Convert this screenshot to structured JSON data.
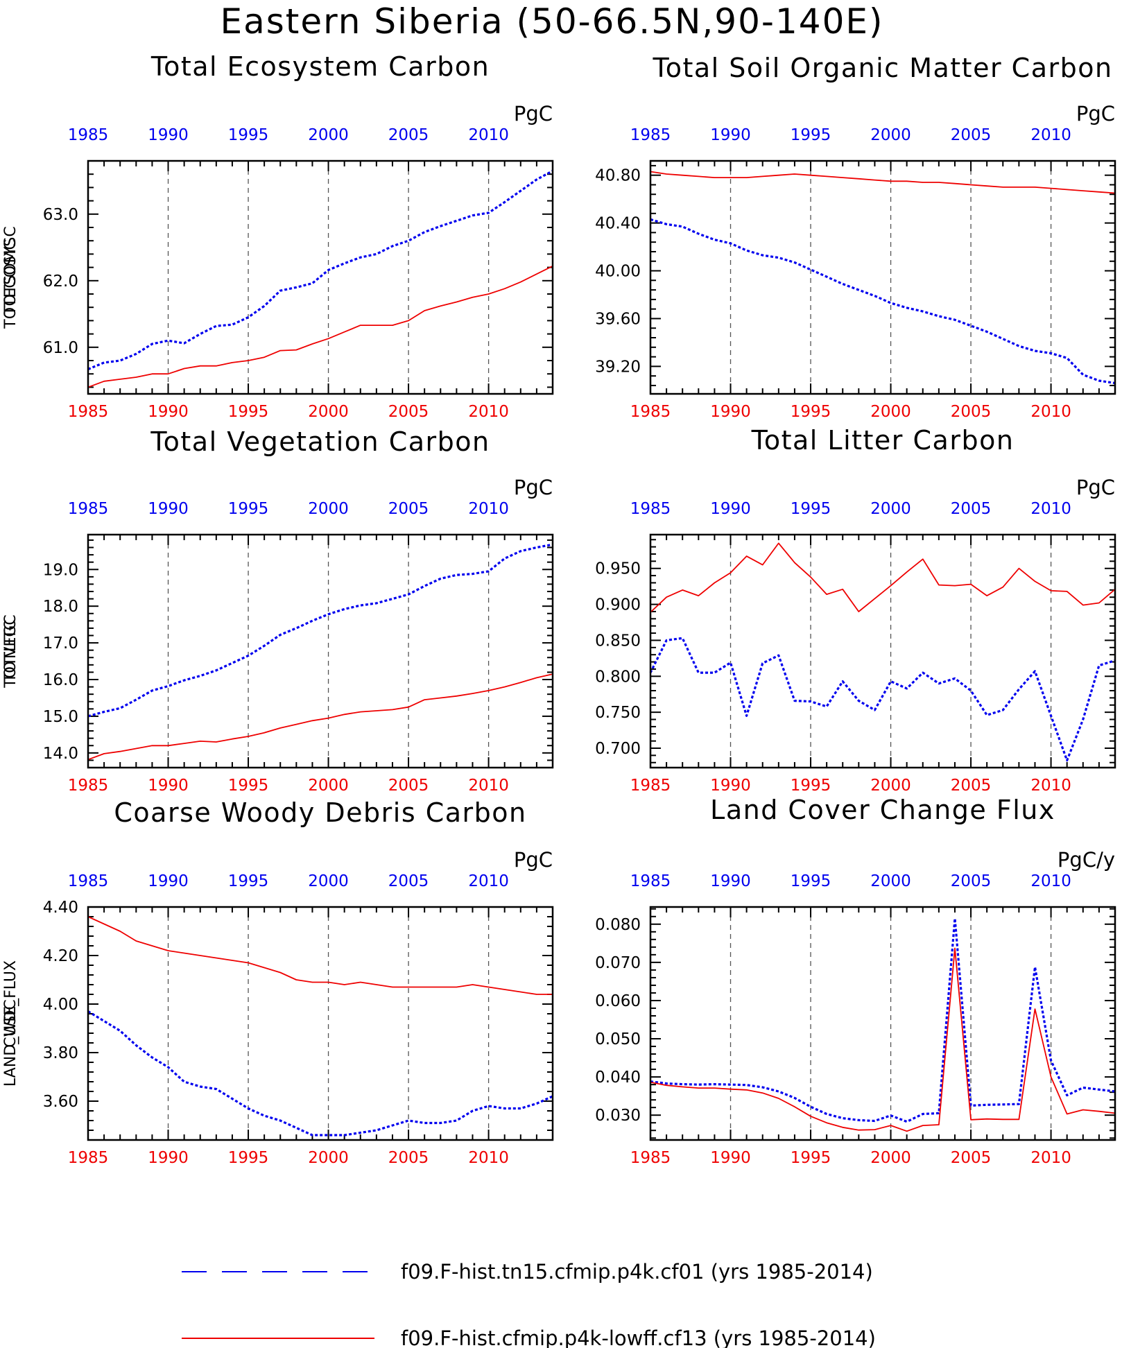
{
  "title": "Eastern Siberia (50-66.5N,90-140E)",
  "colors": {
    "run1": "#0000ee",
    "run2": "#ee0000",
    "frame": "#000000",
    "grid": "#555555"
  },
  "legend": [
    {
      "label": "f09.F-hist.tn15.cfmip.p4k.cf01 (yrs 1985-2014)",
      "color": "#0000ee",
      "style": "dotted"
    },
    {
      "label": "f09.F-hist.cfmip.p4k-lowff.cf13 (yrs 1985-2014)",
      "color": "#ee0000",
      "style": "solid"
    }
  ],
  "chart_data": [
    {
      "type": "line",
      "title": "Total Ecosystem Carbon",
      "ylabel": "TOTECOSYSC",
      "units": "PgC",
      "xlim": [
        1985,
        2014
      ],
      "xticks": [
        "1985",
        "1990",
        "1995",
        "2000",
        "2005",
        "2010"
      ],
      "ylim": [
        60.3,
        63.8
      ],
      "yticks": [
        "61.0",
        "62.0",
        "63.0"
      ],
      "ytick_values": [
        61.0,
        62.0,
        63.0
      ],
      "grid_x": true,
      "x": [
        1985,
        1986,
        1987,
        1988,
        1989,
        1990,
        1991,
        1992,
        1993,
        1994,
        1995,
        1996,
        1997,
        1998,
        1999,
        2000,
        2001,
        2002,
        2003,
        2004,
        2005,
        2006,
        2007,
        2008,
        2009,
        2010,
        2011,
        2012,
        2013,
        2014
      ],
      "series": [
        {
          "name": "f09.F-hist.tn15.cfmip.p4k.cf01",
          "values": [
            60.67,
            60.77,
            60.8,
            60.9,
            61.05,
            61.1,
            61.06,
            61.2,
            61.32,
            61.34,
            61.45,
            61.62,
            61.85,
            61.9,
            61.96,
            62.16,
            62.26,
            62.35,
            62.4,
            62.52,
            62.6,
            62.73,
            62.82,
            62.9,
            62.98,
            63.02,
            63.18,
            63.35,
            63.52,
            63.65
          ]
        },
        {
          "name": "f09.F-hist.cfmip.p4k-lowff.cf13",
          "values": [
            60.4,
            60.49,
            60.52,
            60.55,
            60.6,
            60.6,
            60.68,
            60.72,
            60.72,
            60.77,
            60.8,
            60.85,
            60.95,
            60.96,
            61.05,
            61.13,
            61.23,
            61.33,
            61.33,
            61.33,
            61.4,
            61.55,
            61.62,
            61.68,
            61.75,
            61.8,
            61.88,
            61.98,
            62.1,
            62.22
          ]
        }
      ]
    },
    {
      "type": "line",
      "title": "Total Soil Organic Matter Carbon",
      "ylabel": "TOTSOMC",
      "units": "PgC",
      "xlim": [
        1985,
        2014
      ],
      "xticks": [
        "1985",
        "1990",
        "1995",
        "2000",
        "2005",
        "2010"
      ],
      "ylim": [
        38.97,
        40.92
      ],
      "yticks": [
        "39.20",
        "39.60",
        "40.00",
        "40.40",
        "40.80"
      ],
      "ytick_values": [
        39.2,
        39.6,
        40.0,
        40.4,
        40.8
      ],
      "grid_x": true,
      "x": [
        1985,
        1986,
        1987,
        1988,
        1989,
        1990,
        1991,
        1992,
        1993,
        1994,
        1995,
        1996,
        1997,
        1998,
        1999,
        2000,
        2001,
        2002,
        2003,
        2004,
        2005,
        2006,
        2007,
        2008,
        2009,
        2010,
        2011,
        2012,
        2013,
        2014
      ],
      "series": [
        {
          "name": "f09.F-hist.tn15.cfmip.p4k.cf01",
          "values": [
            40.43,
            40.39,
            40.37,
            40.31,
            40.26,
            40.23,
            40.17,
            40.13,
            40.11,
            40.07,
            40.01,
            39.95,
            39.89,
            39.84,
            39.79,
            39.73,
            39.69,
            39.66,
            39.62,
            39.59,
            39.54,
            39.49,
            39.43,
            39.37,
            39.33,
            39.31,
            39.27,
            39.13,
            39.08,
            39.06
          ]
        },
        {
          "name": "f09.F-hist.cfmip.p4k-lowff.cf13",
          "values": [
            40.83,
            40.81,
            40.8,
            40.79,
            40.78,
            40.78,
            40.78,
            40.79,
            40.8,
            40.81,
            40.8,
            40.79,
            40.78,
            40.77,
            40.76,
            40.75,
            40.75,
            40.74,
            40.74,
            40.73,
            40.72,
            40.71,
            40.7,
            40.7,
            40.7,
            40.69,
            40.68,
            40.67,
            40.66,
            40.65
          ]
        }
      ]
    },
    {
      "type": "line",
      "title": "Total Vegetation Carbon",
      "ylabel": "TOTVEGC",
      "units": "PgC",
      "xlim": [
        1985,
        2014
      ],
      "xticks": [
        "1985",
        "1990",
        "1995",
        "2000",
        "2005",
        "2010"
      ],
      "ylim": [
        13.6,
        19.95
      ],
      "yticks": [
        "14.0",
        "15.0",
        "16.0",
        "17.0",
        "18.0",
        "19.0"
      ],
      "ytick_values": [
        14.0,
        15.0,
        16.0,
        17.0,
        18.0,
        19.0
      ],
      "grid_x": true,
      "x": [
        1985,
        1986,
        1987,
        1988,
        1989,
        1990,
        1991,
        1992,
        1993,
        1994,
        1995,
        1996,
        1997,
        1998,
        1999,
        2000,
        2001,
        2002,
        2003,
        2004,
        2005,
        2006,
        2007,
        2008,
        2009,
        2010,
        2011,
        2012,
        2013,
        2014
      ],
      "series": [
        {
          "name": "f09.F-hist.tn15.cfmip.p4k.cf01",
          "values": [
            15.0,
            15.12,
            15.22,
            15.45,
            15.7,
            15.82,
            15.98,
            16.1,
            16.25,
            16.45,
            16.65,
            16.92,
            17.22,
            17.4,
            17.6,
            17.78,
            17.92,
            18.02,
            18.08,
            18.2,
            18.32,
            18.55,
            18.75,
            18.85,
            18.88,
            18.95,
            19.3,
            19.5,
            19.6,
            19.68
          ]
        },
        {
          "name": "f09.F-hist.cfmip.p4k-lowff.cf13",
          "values": [
            13.82,
            13.98,
            14.04,
            14.12,
            14.2,
            14.2,
            14.26,
            14.32,
            14.3,
            14.38,
            14.45,
            14.55,
            14.68,
            14.78,
            14.88,
            14.95,
            15.05,
            15.12,
            15.15,
            15.18,
            15.25,
            15.45,
            15.5,
            15.55,
            15.62,
            15.7,
            15.8,
            15.92,
            16.05,
            16.15
          ]
        }
      ]
    },
    {
      "type": "line",
      "title": "Total Litter Carbon",
      "ylabel": "TOTLITC",
      "units": "PgC",
      "xlim": [
        1985,
        2014
      ],
      "xticks": [
        "1985",
        "1990",
        "1995",
        "2000",
        "2005",
        "2010"
      ],
      "ylim": [
        0.673,
        0.997
      ],
      "yticks": [
        "0.700",
        "0.750",
        "0.800",
        "0.850",
        "0.900",
        "0.950"
      ],
      "ytick_values": [
        0.7,
        0.75,
        0.8,
        0.85,
        0.9,
        0.95
      ],
      "grid_x": true,
      "x": [
        1985,
        1986,
        1987,
        1988,
        1989,
        1990,
        1991,
        1992,
        1993,
        1994,
        1995,
        1996,
        1997,
        1998,
        1999,
        2000,
        2001,
        2002,
        2003,
        2004,
        2005,
        2006,
        2007,
        2008,
        2009,
        2010,
        2011,
        2012,
        2013,
        2014
      ],
      "series": [
        {
          "name": "f09.F-hist.tn15.cfmip.p4k.cf01",
          "values": [
            0.805,
            0.85,
            0.853,
            0.805,
            0.805,
            0.819,
            0.745,
            0.818,
            0.829,
            0.766,
            0.765,
            0.758,
            0.793,
            0.766,
            0.753,
            0.793,
            0.783,
            0.805,
            0.79,
            0.797,
            0.78,
            0.746,
            0.753,
            0.782,
            0.807,
            0.745,
            0.683,
            0.74,
            0.815,
            0.822
          ]
        },
        {
          "name": "f09.F-hist.cfmip.p4k-lowff.cf13",
          "values": [
            0.889,
            0.91,
            0.92,
            0.912,
            0.93,
            0.944,
            0.967,
            0.955,
            0.985,
            0.958,
            0.938,
            0.914,
            0.921,
            0.89,
            0.908,
            0.926,
            0.945,
            0.963,
            0.927,
            0.926,
            0.928,
            0.912,
            0.924,
            0.95,
            0.932,
            0.919,
            0.918,
            0.899,
            0.902,
            0.921
          ]
        }
      ]
    },
    {
      "type": "line",
      "title": "Coarse Woody Debris Carbon",
      "ylabel": "CWDC",
      "units": "PgC",
      "xlim": [
        1985,
        2014
      ],
      "xticks": [
        "1985",
        "1990",
        "1995",
        "2000",
        "2005",
        "2010"
      ],
      "ylim": [
        3.44,
        4.4
      ],
      "yticks": [
        "3.60",
        "3.80",
        "4.00",
        "4.20",
        "4.40"
      ],
      "ytick_values": [
        3.6,
        3.8,
        4.0,
        4.2,
        4.4
      ],
      "grid_x": true,
      "x": [
        1985,
        1986,
        1987,
        1988,
        1989,
        1990,
        1991,
        1992,
        1993,
        1994,
        1995,
        1996,
        1997,
        1998,
        1999,
        2000,
        2001,
        2002,
        2003,
        2004,
        2005,
        2006,
        2007,
        2008,
        2009,
        2010,
        2011,
        2012,
        2013,
        2014
      ],
      "series": [
        {
          "name": "f09.F-hist.tn15.cfmip.p4k.cf01",
          "values": [
            3.97,
            3.93,
            3.89,
            3.83,
            3.78,
            3.74,
            3.68,
            3.66,
            3.65,
            3.61,
            3.57,
            3.54,
            3.52,
            3.49,
            3.46,
            3.46,
            3.46,
            3.47,
            3.48,
            3.5,
            3.52,
            3.51,
            3.51,
            3.52,
            3.56,
            3.58,
            3.57,
            3.57,
            3.59,
            3.62
          ]
        },
        {
          "name": "f09.F-hist.cfmip.p4k-lowff.cf13",
          "values": [
            4.36,
            4.33,
            4.3,
            4.26,
            4.24,
            4.22,
            4.21,
            4.2,
            4.19,
            4.18,
            4.17,
            4.15,
            4.13,
            4.1,
            4.09,
            4.09,
            4.08,
            4.09,
            4.08,
            4.07,
            4.07,
            4.07,
            4.07,
            4.07,
            4.08,
            4.07,
            4.06,
            4.05,
            4.04,
            4.04
          ]
        }
      ]
    },
    {
      "type": "line",
      "title": "Land Cover Change Flux",
      "ylabel": "LAND_USE_FLUX",
      "units": "PgC/y",
      "xlim": [
        1985,
        2014
      ],
      "xticks": [
        "1985",
        "1990",
        "1995",
        "2000",
        "2005",
        "2010"
      ],
      "ylim": [
        0.0235,
        0.0845
      ],
      "yticks": [
        "0.030",
        "0.040",
        "0.050",
        "0.060",
        "0.070",
        "0.080"
      ],
      "ytick_values": [
        0.03,
        0.04,
        0.05,
        0.06,
        0.07,
        0.08
      ],
      "grid_x": true,
      "x": [
        1985,
        1986,
        1987,
        1988,
        1989,
        1990,
        1991,
        1992,
        1993,
        1994,
        1995,
        1996,
        1997,
        1998,
        1999,
        2000,
        2001,
        2002,
        2003,
        2004,
        2005,
        2006,
        2007,
        2008,
        2009,
        2010,
        2011,
        2012,
        2013,
        2014
      ],
      "series": [
        {
          "name": "f09.F-hist.tn15.cfmip.p4k.cf01",
          "values": [
            0.0388,
            0.0383,
            0.0381,
            0.038,
            0.0381,
            0.038,
            0.0379,
            0.0373,
            0.0362,
            0.0345,
            0.0322,
            0.0303,
            0.0292,
            0.0287,
            0.0285,
            0.0299,
            0.0283,
            0.0303,
            0.0305,
            0.0815,
            0.0325,
            0.0327,
            0.0328,
            0.0329,
            0.0688,
            0.0443,
            0.0352,
            0.0372,
            0.0367,
            0.0362
          ]
        },
        {
          "name": "f09.F-hist.cfmip.p4k-lowff.cf13",
          "values": [
            0.0386,
            0.0378,
            0.0374,
            0.0371,
            0.0371,
            0.0368,
            0.0366,
            0.0358,
            0.0344,
            0.0322,
            0.0297,
            0.028,
            0.0268,
            0.0261,
            0.0262,
            0.0273,
            0.0258,
            0.0273,
            0.0275,
            0.0737,
            0.0288,
            0.029,
            0.0289,
            0.0289,
            0.0578,
            0.04,
            0.0303,
            0.0314,
            0.031,
            0.0305
          ]
        }
      ]
    }
  ]
}
